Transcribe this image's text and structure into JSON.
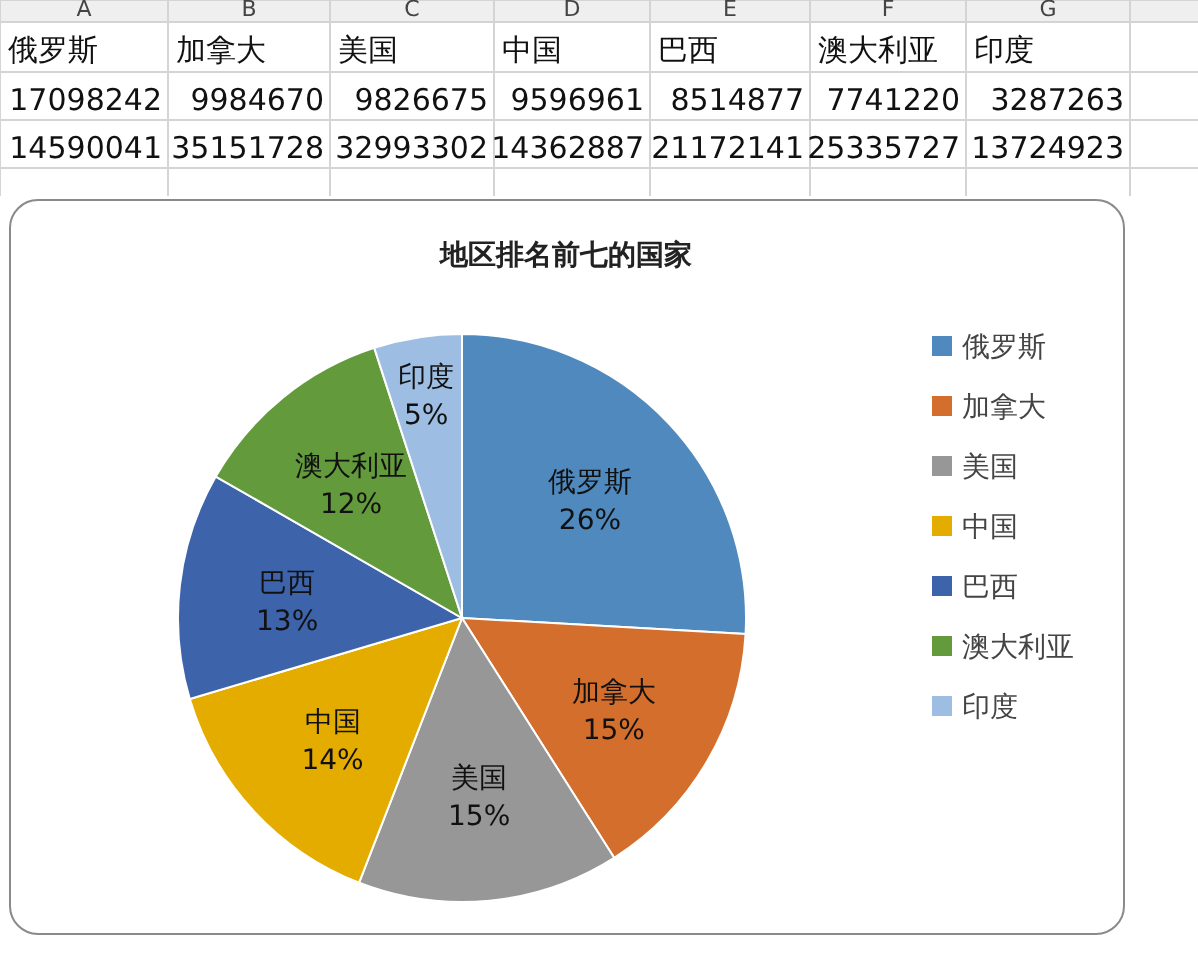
{
  "chart_data": [
    {
      "type": "other",
      "annotations": [
        "A",
        "B",
        "C",
        "D",
        "E",
        "F",
        "G",
        "俄罗斯",
        "加拿大",
        "美国",
        "中国",
        "巴西",
        "澳大利亚",
        "印度",
        "17098242",
        "9984670",
        "9826675",
        "9596961",
        "8514877",
        "7741220",
        "3287263",
        "14590041",
        "35151728",
        "32993302",
        "14362887",
        "21172141",
        "25335727",
        "13724923"
      ]
    },
    {
      "type": "pie",
      "title": "地区排名前七的国家",
      "categories": [
        "俄罗斯",
        "加拿大",
        "美国",
        "中国",
        "巴西",
        "澳大利亚",
        "印度"
      ],
      "values": [
        25.9,
        15.1,
        14.9,
        14.5,
        12.9,
        11.7,
        5.0
      ],
      "colors": [
        "#4f89bd",
        "#d46e2c",
        "#979797",
        "#e5ac00",
        "#3d64ab",
        "#639b3c",
        "#9dbde2"
      ],
      "value_labels": [
        "26%",
        "15%",
        "15%",
        "14%",
        "13%",
        "12%",
        "5%"
      ],
      "legend": "right"
    }
  ]
}
